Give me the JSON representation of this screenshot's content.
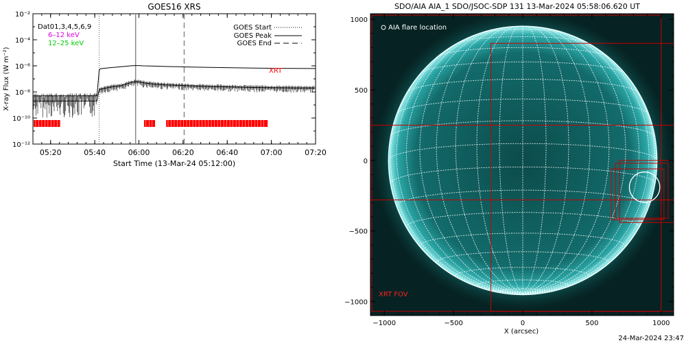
{
  "goes_panel": {
    "title": "GOES16 XRS",
    "ylabel": "X-ray Flux (W m⁻²)",
    "xlabel": "Start Time (13-Mar-24 05:12:00)",
    "legend_left": [
      {
        "text": "Dat01,3,4,5,6,9",
        "color": "#000000"
      },
      {
        "text": "6–12 keV",
        "color": "#e000e0"
      },
      {
        "text": "12–25 keV",
        "color": "#00cc00"
      }
    ],
    "legend_right": [
      {
        "text": "GOES Start",
        "style": "dotted"
      },
      {
        "text": "GOES Peak",
        "style": "solid"
      },
      {
        "text": "GOES End",
        "style": "dashed"
      }
    ],
    "xrt_label": "XRT",
    "xrt_color": "#ff0000"
  },
  "aia_panel": {
    "title": "SDO/AIA AIA_1 SDO/JSOC-SDP 131 13-Mar-2024 05:58:06.620 UT",
    "legend": "AIA flare location",
    "fov_label": "XRT FOV",
    "xlabel": "X (arcsec)",
    "x_ticks": [
      "−1000",
      "−500",
      "0",
      "500",
      "1000"
    ],
    "y_ticks": [
      "1000",
      "500",
      "0",
      "−500",
      "−1000"
    ],
    "disk_color": "#1a8c8c",
    "fov_color": "#cc0000"
  },
  "footer": {
    "timestamp": "24-Mar-2024 23:47"
  },
  "chart_data": [
    {
      "type": "line",
      "title": "GOES16 XRS",
      "xlabel": "Start Time (13-Mar-24 05:12:00)",
      "ylabel": "X-ray Flux (W m⁻²)",
      "yscale": "log",
      "ylim": [
        1e-12,
        0.01
      ],
      "y_ticks": [
        "10⁻²",
        "10⁻⁴",
        "10⁻⁶",
        "10⁻⁸",
        "10⁻¹⁰",
        "10⁻¹²"
      ],
      "x_ticks": [
        "05:20",
        "05:40",
        "06:00",
        "06:20",
        "06:40",
        "07:00",
        "07:20"
      ],
      "xlim_min_after_start": [
        0,
        128
      ],
      "x_tick_min_after_start": [
        8,
        28,
        48,
        68,
        88,
        108,
        128
      ],
      "series": [
        {
          "name": "",
          "x_min_after_start": [
            0,
            29,
            30,
            30.5,
            32,
            36,
            40,
            44,
            46,
            48,
            50,
            55,
            60,
            70,
            80,
            90,
            100,
            110,
            120,
            128
          ],
          "y": [
            5e-09,
            5e-09,
            4.5e-07,
            6e-07,
            6.5e-07,
            7.5e-07,
            8.5e-07,
            1e-06,
            1.05e-06,
            1.05e-06,
            1e-06,
            9.5e-07,
            9e-07,
            8.2e-07,
            7.6e-07,
            7.2e-07,
            6.8e-07,
            6.5e-07,
            6.3e-07,
            6.2e-07
          ]
        },
        {
          "name": "",
          "x_min_after_start": [
            0,
            29,
            30,
            32,
            36,
            40,
            44,
            46,
            48,
            50,
            55,
            60,
            70,
            80,
            90,
            100,
            110,
            120,
            128
          ],
          "y": [
            2e-09,
            2e-09,
            1.5e-08,
            1.8e-08,
            2.5e-08,
            3e-08,
            5e-08,
            6e-08,
            6e-08,
            5e-08,
            4e-08,
            3.5e-08,
            3e-08,
            2.6e-08,
            2.4e-08,
            2.2e-08,
            2.1e-08,
            2e-08,
            2e-08
          ]
        }
      ],
      "markers": {
        "goes_start_min": 30,
        "goes_peak_min": 46.5,
        "goes_end_min": 68.5
      },
      "xrt_coverage_min": [
        [
          0,
          12
        ],
        [
          50,
          55
        ],
        [
          60,
          106
        ]
      ]
    },
    {
      "type": "scatter",
      "title": "SDO/AIA AIA_1 SDO/JSOC-SDP 131 13-Mar-2024 05:58:06.620 UT",
      "xlabel": "X (arcsec)",
      "ylabel": "",
      "xlim": [
        -1100,
        1090
      ],
      "ylim": [
        -1100,
        1040
      ],
      "solar_radius_arcsec": 970,
      "flare_location_arcsec": [
        880,
        -190
      ],
      "xrt_fov_boxes_arcsec": [
        [
          -1090,
          -1070,
          1000,
          1030
        ],
        [
          -230,
          -1070,
          1090,
          830
        ],
        [
          -1100,
          -280,
          1090,
          250
        ],
        [
          670,
          -410,
          1050,
          -20
        ],
        [
          640,
          -420,
          1020,
          -60
        ],
        [
          700,
          -440,
          1090,
          0
        ]
      ]
    }
  ]
}
